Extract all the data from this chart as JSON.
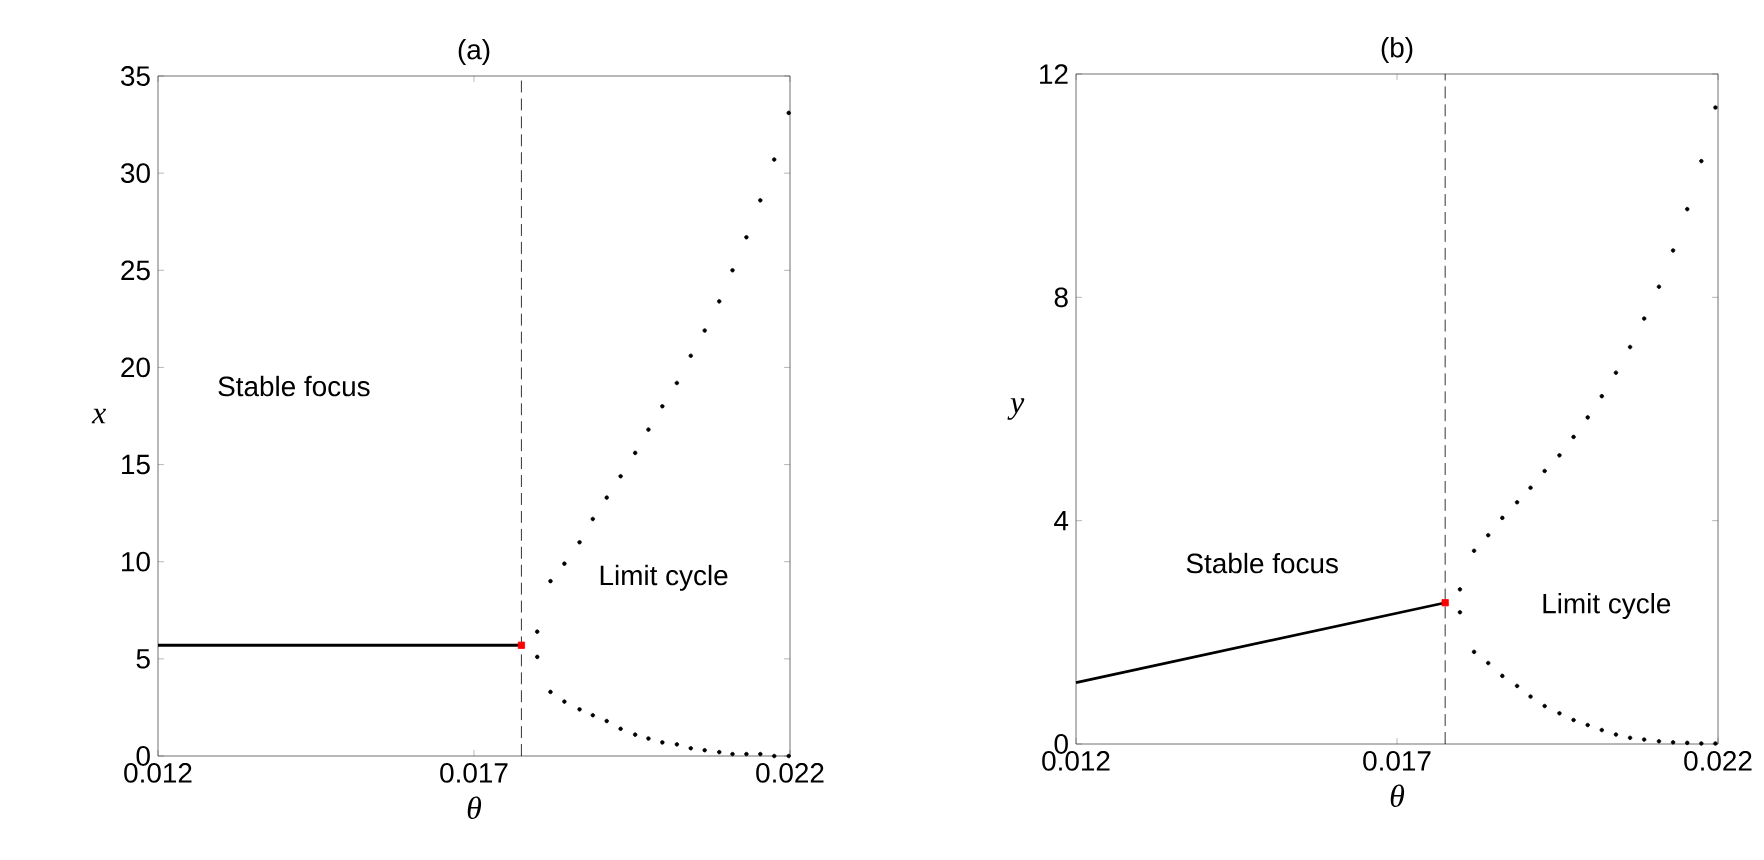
{
  "chart_data": [
    {
      "type": "scatter",
      "title": "(a)",
      "xlabel": "θ",
      "ylabel": "x",
      "xlim": [
        0.012,
        0.022
      ],
      "ylim": [
        0,
        35
      ],
      "xticks": [
        0.012,
        0.017,
        0.022
      ],
      "yticks": [
        0,
        5,
        10,
        15,
        20,
        25,
        30,
        35
      ],
      "annotations": [
        "Stable focus",
        "Limit cycle"
      ],
      "ref_lines": [
        {
          "axis": "x",
          "value": 0.01775,
          "color": "#000000",
          "line_style": "dashed"
        }
      ],
      "series": [
        {
          "type": "line",
          "color": "#000000",
          "marker": "none",
          "x": [
            0.012,
            0.014,
            0.016,
            0.01775
          ],
          "values": [
            5.7,
            5.7,
            5.7,
            5.7
          ]
        },
        {
          "color": "#000000",
          "marker": "circle",
          "x": [
            0.018,
            0.01821,
            0.01843,
            0.01867,
            0.01888,
            0.0191,
            0.01932,
            0.01955,
            0.01976,
            0.01998,
            0.02021,
            0.02043,
            0.02065,
            0.02088,
            0.02109,
            0.02131,
            0.02153,
            0.02175,
            0.02198
          ],
          "values": [
            6.4,
            9.0,
            9.9,
            11.0,
            12.2,
            13.3,
            14.4,
            15.6,
            16.8,
            18.0,
            19.2,
            20.6,
            21.9,
            23.4,
            25.0,
            26.7,
            28.6,
            30.7,
            33.1
          ]
        },
        {
          "color": "#000000",
          "marker": "circle",
          "x": [
            0.018,
            0.01821,
            0.01843,
            0.01867,
            0.01888,
            0.0191,
            0.01932,
            0.01955,
            0.01976,
            0.01998,
            0.02021,
            0.02043,
            0.02065,
            0.02088,
            0.02109,
            0.02131,
            0.02153,
            0.02175,
            0.02198
          ],
          "values": [
            5.1,
            3.3,
            2.8,
            2.4,
            2.1,
            1.8,
            1.4,
            1.1,
            0.9,
            0.7,
            0.6,
            0.4,
            0.3,
            0.2,
            0.1,
            0.1,
            0.1,
            0.0,
            0.0
          ]
        },
        {
          "color": "#ff0000",
          "marker": "square",
          "x": [
            0.01775
          ],
          "values": [
            5.7
          ]
        }
      ]
    },
    {
      "type": "scatter",
      "title": "(b)",
      "xlabel": "θ",
      "ylabel": "y",
      "xlim": [
        0.012,
        0.022
      ],
      "ylim": [
        0,
        12
      ],
      "xticks": [
        0.012,
        0.017,
        0.022
      ],
      "yticks": [
        0,
        4,
        8,
        12
      ],
      "annotations": [
        "Stable focus",
        "Limit cycle"
      ],
      "ref_lines": [
        {
          "axis": "x",
          "value": 0.01775,
          "color": "#000000",
          "line_style": "dashed"
        }
      ],
      "series": [
        {
          "type": "line",
          "color": "#000000",
          "marker": "none",
          "x": [
            0.012,
            0.01775
          ],
          "values": [
            1.1,
            2.53
          ]
        },
        {
          "color": "#000000",
          "marker": "circle",
          "x": [
            0.01798,
            0.0182,
            0.01842,
            0.01864,
            0.01887,
            0.01908,
            0.0193,
            0.01953,
            0.01975,
            0.01997,
            0.02019,
            0.02041,
            0.02063,
            0.02085,
            0.02108,
            0.0213,
            0.02152,
            0.02174,
            0.02196
          ],
          "values": [
            2.77,
            3.46,
            3.74,
            4.05,
            4.33,
            4.59,
            4.89,
            5.17,
            5.5,
            5.85,
            6.23,
            6.65,
            7.11,
            7.62,
            8.19,
            8.84,
            9.58,
            10.44,
            11.4
          ]
        },
        {
          "color": "#000000",
          "marker": "circle",
          "x": [
            0.01798,
            0.0182,
            0.01842,
            0.01864,
            0.01887,
            0.01908,
            0.0193,
            0.01953,
            0.01975,
            0.01997,
            0.02019,
            0.02041,
            0.02063,
            0.02085,
            0.02108,
            0.0213,
            0.02152,
            0.02174,
            0.02196
          ],
          "values": [
            2.36,
            1.65,
            1.45,
            1.22,
            1.04,
            0.85,
            0.68,
            0.55,
            0.43,
            0.34,
            0.25,
            0.17,
            0.11,
            0.08,
            0.05,
            0.03,
            0.02,
            0.01,
            0.01
          ]
        },
        {
          "color": "#ff0000",
          "marker": "square",
          "x": [
            0.01775
          ],
          "values": [
            2.53
          ]
        }
      ]
    }
  ]
}
